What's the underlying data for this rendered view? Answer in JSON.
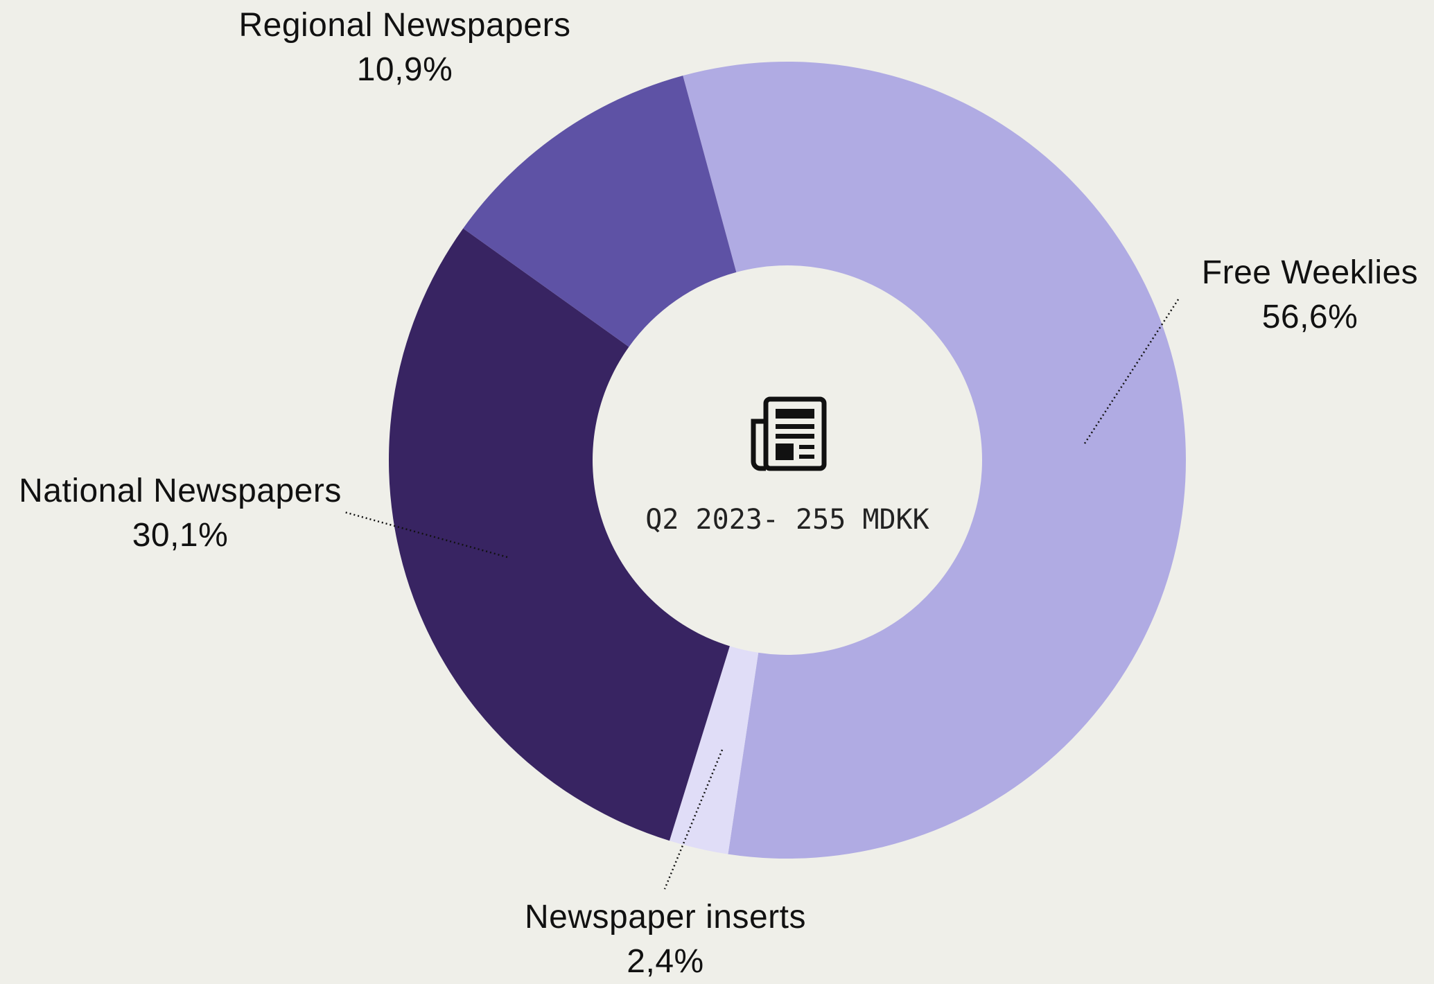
{
  "chart_data": {
    "type": "donut",
    "center_label": "Q2 2023- 255 MDKK",
    "categories": [
      "Free Weeklies",
      "Newspaper inserts",
      "National Newspapers",
      "Regional Newspapers"
    ],
    "values": [
      56.6,
      2.4,
      30.1,
      10.9
    ],
    "value_labels": [
      "56,6%",
      "2,4%",
      "30,1%",
      "10,9%"
    ],
    "colors": [
      "#b0abe3",
      "#e0ddf7",
      "#382462",
      "#5e52a5"
    ]
  }
}
